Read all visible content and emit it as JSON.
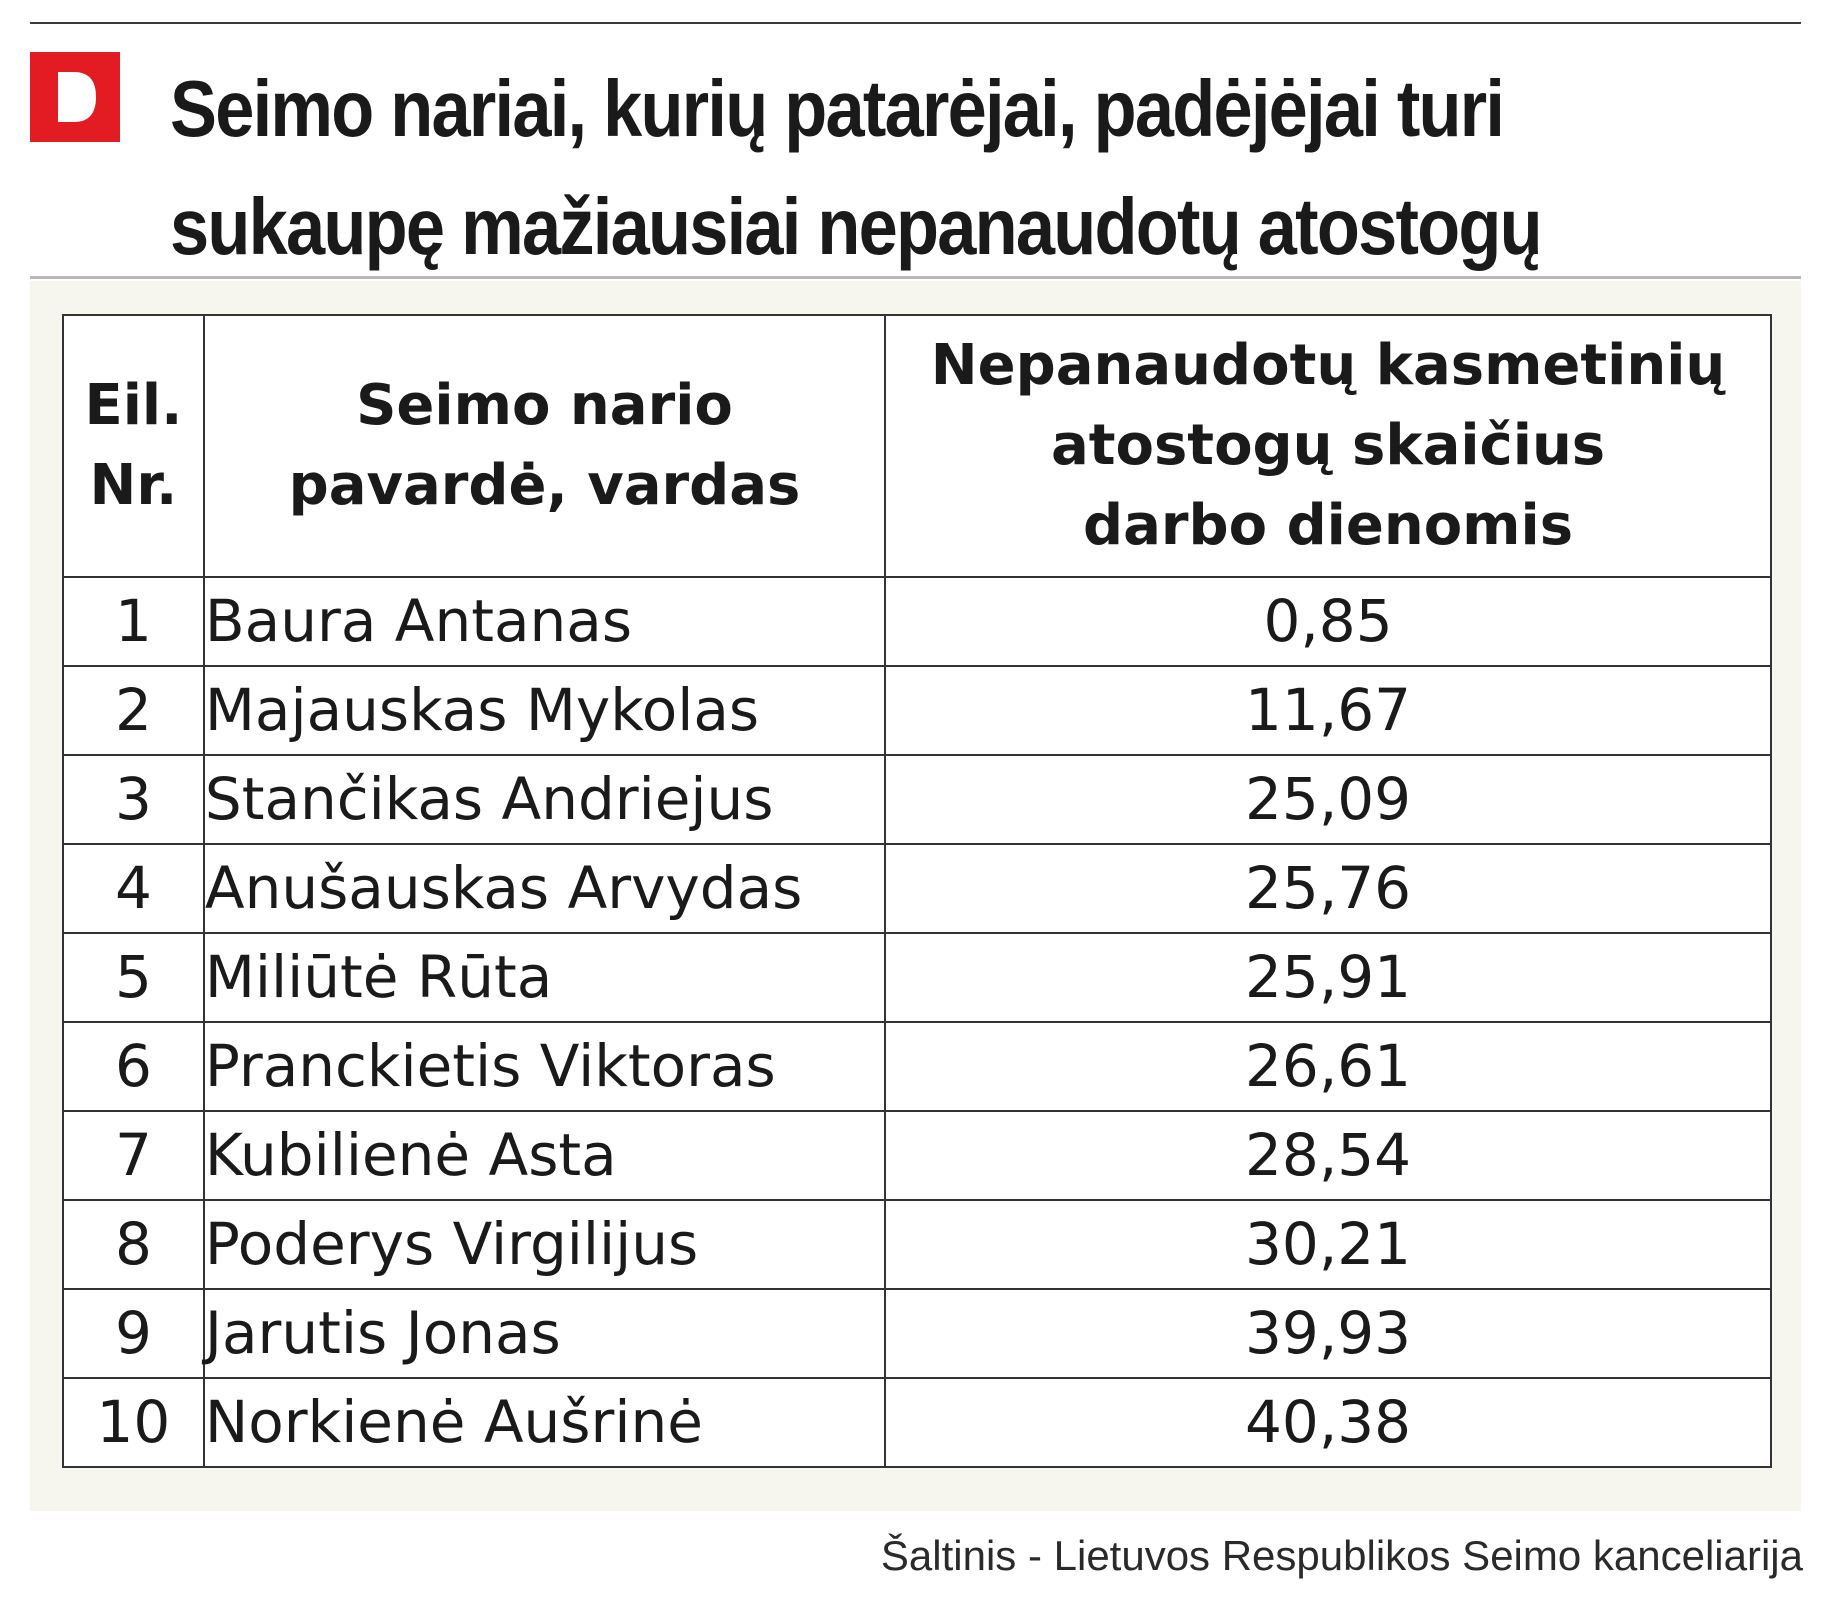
{
  "header": {
    "logo_letter": "D",
    "title_line1": "Seimo nariai, kurių patarėjai, padėjėjai turi",
    "title_line2": "sukaupę mažiausiai nepanaudotų atostogų"
  },
  "chart_data": {
    "type": "table",
    "columns": [
      {
        "line1": "Eil.",
        "line2": "Nr."
      },
      {
        "line1": "Seimo nario",
        "line2": "pavardė, vardas"
      },
      {
        "line1": "Nepanaudotų kasmetinių",
        "line2": "atostogų skaičius",
        "line3": "darbo dienomis"
      }
    ],
    "rows": [
      {
        "nr": "1",
        "name": "Baura Antanas",
        "value": "0,85"
      },
      {
        "nr": "2",
        "name": "Majauskas Mykolas",
        "value": "11,67"
      },
      {
        "nr": "3",
        "name": "Stančikas Andriejus",
        "value": "25,09"
      },
      {
        "nr": "4",
        "name": "Anušauskas Arvydas",
        "value": "25,76"
      },
      {
        "nr": "5",
        "name": "Miliūtė Rūta",
        "value": "25,91"
      },
      {
        "nr": "6",
        "name": "Pranckietis Viktoras",
        "value": "26,61"
      },
      {
        "nr": "7",
        "name": "Kubilienė Asta",
        "value": "28,54"
      },
      {
        "nr": "8",
        "name": "Poderys Virgilijus",
        "value": "30,21"
      },
      {
        "nr": "9",
        "name": "Jarutis Jonas",
        "value": "39,93"
      },
      {
        "nr": "10",
        "name": "Norkienė Aušrinė",
        "value": "40,38"
      }
    ]
  },
  "footer": {
    "source": "Šaltinis - Lietuvos Respublikos Seimo kanceliarija"
  },
  "colors": {
    "brand_red": "#e31b23",
    "panel_bg": "#f7f6ee",
    "text": "#1a1a1a"
  }
}
